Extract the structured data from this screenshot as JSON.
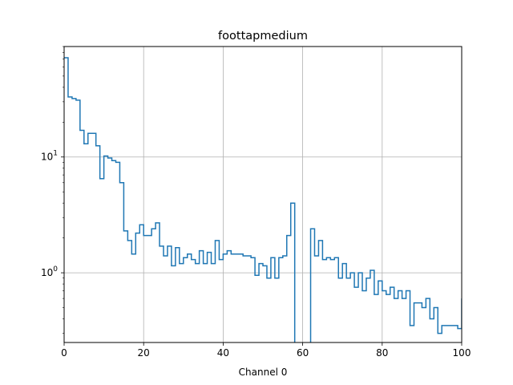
{
  "chart_data": {
    "type": "line",
    "title": "foottapmedium",
    "xlabel": "Channel 0",
    "ylabel": "",
    "xlim": [
      0,
      100
    ],
    "ylim": [
      0.25,
      90
    ],
    "yscale": "log",
    "grid": true,
    "line_color": "#1f77b4",
    "x_ticks": [
      0,
      20,
      40,
      60,
      80,
      100
    ],
    "y_ticks": [
      1,
      10
    ],
    "y_tick_labels": [
      "10^0",
      "10^1"
    ],
    "series": [
      {
        "step": true,
        "x": [
          0,
          1,
          2,
          3,
          4,
          5,
          6,
          7,
          8,
          9,
          10,
          11,
          12,
          13,
          14,
          15,
          16,
          17,
          18,
          19,
          20,
          21,
          22,
          23,
          24,
          25,
          26,
          27,
          28,
          29,
          30,
          31,
          32,
          33,
          34,
          35,
          36,
          37,
          38,
          39,
          40,
          41,
          42,
          43,
          44,
          45,
          46,
          47,
          48,
          49,
          50,
          51,
          52,
          53,
          54,
          55,
          56,
          57,
          58,
          59,
          60,
          61,
          62,
          63,
          64,
          65,
          66,
          67,
          68,
          69,
          70,
          71,
          72,
          73,
          74,
          75,
          76,
          77,
          78,
          79,
          80,
          81,
          82,
          83,
          84,
          85,
          86,
          87,
          88,
          89,
          90,
          91,
          92,
          93,
          94,
          95,
          96,
          97,
          98,
          99,
          100
        ],
        "values": [
          72,
          33,
          32,
          31,
          17,
          13,
          16,
          16,
          12.5,
          6.5,
          10.2,
          9.8,
          9.3,
          9,
          6,
          2.3,
          1.9,
          1.45,
          2.2,
          2.6,
          2.1,
          2.1,
          2.4,
          2.7,
          1.7,
          1.4,
          1.7,
          1.15,
          1.65,
          1.2,
          1.35,
          1.45,
          1.3,
          1.2,
          1.55,
          1.2,
          1.5,
          1.2,
          1.9,
          1.3,
          1.45,
          1.55,
          1.45,
          1.45,
          1.45,
          1.4,
          1.4,
          1.35,
          0.95,
          1.2,
          1.15,
          0.9,
          1.35,
          0.9,
          1.35,
          1.4,
          2.1,
          4.0,
          0.2,
          0.2,
          0.2,
          0.2,
          2.4,
          1.4,
          1.9,
          1.3,
          1.35,
          1.3,
          1.35,
          0.9,
          1.2,
          0.9,
          1.0,
          0.75,
          1.0,
          0.7,
          0.9,
          1.05,
          0.65,
          0.85,
          0.7,
          0.65,
          0.75,
          0.6,
          0.7,
          0.6,
          0.7,
          0.35,
          0.55,
          0.55,
          0.5,
          0.6,
          0.4,
          0.5,
          0.3,
          0.35,
          0.35,
          0.35,
          0.35,
          0.33,
          0.6
        ]
      }
    ]
  }
}
